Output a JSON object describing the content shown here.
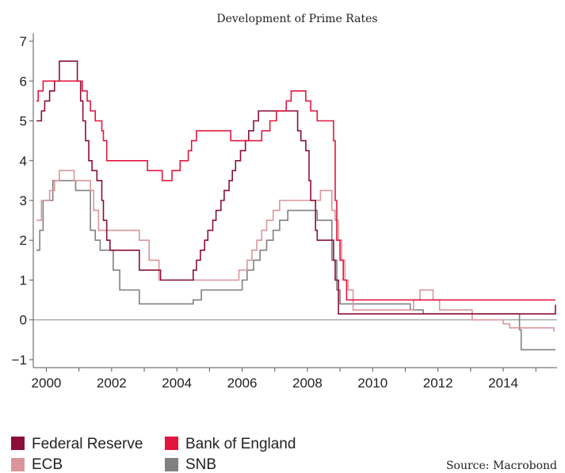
{
  "chart_data": {
    "type": "line",
    "title": "Development of Prime Rates",
    "xlabel": "",
    "ylabel": "",
    "xlim": [
      1999.6,
      2015.65
    ],
    "ylim": [
      -1.2,
      7.2
    ],
    "x_ticks": [
      2000,
      2002,
      2004,
      2006,
      2008,
      2010,
      2012,
      2014
    ],
    "x_tick_labels": [
      "2000",
      "2002",
      "2004",
      "2006",
      "2008",
      "2010",
      "2012",
      "2014"
    ],
    "y_ticks": [
      -1,
      0,
      1,
      2,
      3,
      4,
      5,
      6,
      7
    ],
    "y_tick_labels": [
      "−1",
      "0",
      "1",
      "2",
      "3",
      "4",
      "5",
      "6",
      "7"
    ],
    "grid": false,
    "zero_line": true,
    "legend_position": "bottom-left",
    "source": "Source: Macrobond",
    "series": [
      {
        "name": "Federal Reserve",
        "color": "#8b0f36",
        "step": true,
        "points": [
          [
            1999.7,
            5.0
          ],
          [
            1999.85,
            5.25
          ],
          [
            1999.95,
            5.5
          ],
          [
            2000.1,
            5.75
          ],
          [
            2000.25,
            6.0
          ],
          [
            2000.4,
            6.5
          ],
          [
            2000.95,
            6.0
          ],
          [
            2001.05,
            5.5
          ],
          [
            2001.12,
            5.0
          ],
          [
            2001.2,
            4.5
          ],
          [
            2001.3,
            4.0
          ],
          [
            2001.4,
            3.75
          ],
          [
            2001.55,
            3.5
          ],
          [
            2001.7,
            3.0
          ],
          [
            2001.75,
            2.5
          ],
          [
            2001.85,
            2.0
          ],
          [
            2001.95,
            1.75
          ],
          [
            2002.85,
            1.25
          ],
          [
            2003.5,
            1.0
          ],
          [
            2004.5,
            1.25
          ],
          [
            2004.6,
            1.5
          ],
          [
            2004.72,
            1.75
          ],
          [
            2004.85,
            2.0
          ],
          [
            2004.95,
            2.25
          ],
          [
            2005.1,
            2.5
          ],
          [
            2005.2,
            2.75
          ],
          [
            2005.35,
            3.0
          ],
          [
            2005.45,
            3.25
          ],
          [
            2005.6,
            3.5
          ],
          [
            2005.7,
            3.75
          ],
          [
            2005.8,
            4.0
          ],
          [
            2005.95,
            4.25
          ],
          [
            2006.1,
            4.5
          ],
          [
            2006.2,
            4.75
          ],
          [
            2006.35,
            5.0
          ],
          [
            2006.5,
            5.25
          ],
          [
            2007.7,
            4.75
          ],
          [
            2007.8,
            4.5
          ],
          [
            2007.95,
            4.25
          ],
          [
            2008.05,
            3.5
          ],
          [
            2008.1,
            3.0
          ],
          [
            2008.25,
            2.25
          ],
          [
            2008.3,
            2.0
          ],
          [
            2008.8,
            1.5
          ],
          [
            2008.85,
            1.0
          ],
          [
            2008.95,
            0.15
          ],
          [
            2015.55,
            0.15
          ],
          [
            2015.6,
            0.38
          ]
        ]
      },
      {
        "name": "Bank of England",
        "color": "#e2173f",
        "step": true,
        "points": [
          [
            1999.7,
            5.5
          ],
          [
            1999.75,
            5.75
          ],
          [
            1999.9,
            6.0
          ],
          [
            2001.1,
            5.75
          ],
          [
            2001.25,
            5.5
          ],
          [
            2001.35,
            5.25
          ],
          [
            2001.5,
            5.0
          ],
          [
            2001.7,
            4.75
          ],
          [
            2001.75,
            4.5
          ],
          [
            2001.85,
            4.0
          ],
          [
            2003.1,
            3.75
          ],
          [
            2003.55,
            3.5
          ],
          [
            2003.85,
            3.75
          ],
          [
            2004.1,
            4.0
          ],
          [
            2004.35,
            4.25
          ],
          [
            2004.45,
            4.5
          ],
          [
            2004.6,
            4.75
          ],
          [
            2005.65,
            4.5
          ],
          [
            2006.6,
            4.75
          ],
          [
            2006.85,
            5.0
          ],
          [
            2007.05,
            5.25
          ],
          [
            2007.35,
            5.5
          ],
          [
            2007.5,
            5.75
          ],
          [
            2007.95,
            5.5
          ],
          [
            2008.1,
            5.25
          ],
          [
            2008.3,
            5.0
          ],
          [
            2008.8,
            4.5
          ],
          [
            2008.85,
            3.0
          ],
          [
            2008.9,
            2.0
          ],
          [
            2009.0,
            1.5
          ],
          [
            2009.1,
            1.0
          ],
          [
            2009.2,
            0.5
          ],
          [
            2015.6,
            0.5
          ]
        ]
      },
      {
        "name": "ECB",
        "color": "#d9969a",
        "step": true,
        "points": [
          [
            1999.7,
            2.5
          ],
          [
            1999.85,
            3.0
          ],
          [
            2000.1,
            3.25
          ],
          [
            2000.25,
            3.5
          ],
          [
            2000.4,
            3.75
          ],
          [
            2000.85,
            3.5
          ],
          [
            2001.35,
            3.25
          ],
          [
            2001.45,
            2.75
          ],
          [
            2001.6,
            2.25
          ],
          [
            2002.85,
            2.0
          ],
          [
            2003.15,
            1.5
          ],
          [
            2003.45,
            1.0
          ],
          [
            2005.9,
            1.25
          ],
          [
            2006.15,
            1.5
          ],
          [
            2006.3,
            1.75
          ],
          [
            2006.45,
            2.0
          ],
          [
            2006.6,
            2.25
          ],
          [
            2006.75,
            2.5
          ],
          [
            2006.95,
            2.75
          ],
          [
            2007.15,
            3.0
          ],
          [
            2008.4,
            3.25
          ],
          [
            2008.75,
            2.75
          ],
          [
            2008.85,
            2.5
          ],
          [
            2008.95,
            2.0
          ],
          [
            2009.05,
            1.5
          ],
          [
            2009.15,
            1.0
          ],
          [
            2009.25,
            0.75
          ],
          [
            2009.4,
            0.25
          ],
          [
            2011.25,
            0.5
          ],
          [
            2011.45,
            0.75
          ],
          [
            2011.85,
            0.5
          ],
          [
            2012.05,
            0.25
          ],
          [
            2013.05,
            0.0
          ],
          [
            2014.0,
            -0.1
          ],
          [
            2014.2,
            -0.2
          ],
          [
            2015.55,
            -0.3
          ]
        ]
      },
      {
        "name": "SNB",
        "color": "#808080",
        "step": true,
        "points": [
          [
            1999.7,
            1.75
          ],
          [
            1999.8,
            2.25
          ],
          [
            1999.9,
            3.0
          ],
          [
            2000.2,
            3.5
          ],
          [
            2000.9,
            3.25
          ],
          [
            2001.35,
            2.25
          ],
          [
            2001.5,
            2.0
          ],
          [
            2001.65,
            1.75
          ],
          [
            2002.05,
            1.25
          ],
          [
            2002.25,
            0.75
          ],
          [
            2002.85,
            0.4
          ],
          [
            2004.5,
            0.5
          ],
          [
            2004.75,
            0.75
          ],
          [
            2006.0,
            1.0
          ],
          [
            2006.15,
            1.25
          ],
          [
            2006.35,
            1.5
          ],
          [
            2006.55,
            1.75
          ],
          [
            2006.75,
            2.0
          ],
          [
            2006.95,
            2.25
          ],
          [
            2007.15,
            2.5
          ],
          [
            2007.4,
            2.75
          ],
          [
            2008.3,
            2.5
          ],
          [
            2008.75,
            1.5
          ],
          [
            2008.9,
            0.75
          ],
          [
            2009.0,
            0.4
          ],
          [
            2011.15,
            0.25
          ],
          [
            2011.55,
            0.15
          ],
          [
            2014.5,
            -0.25
          ],
          [
            2014.55,
            -0.75
          ],
          [
            2015.6,
            -0.75
          ]
        ]
      }
    ]
  }
}
